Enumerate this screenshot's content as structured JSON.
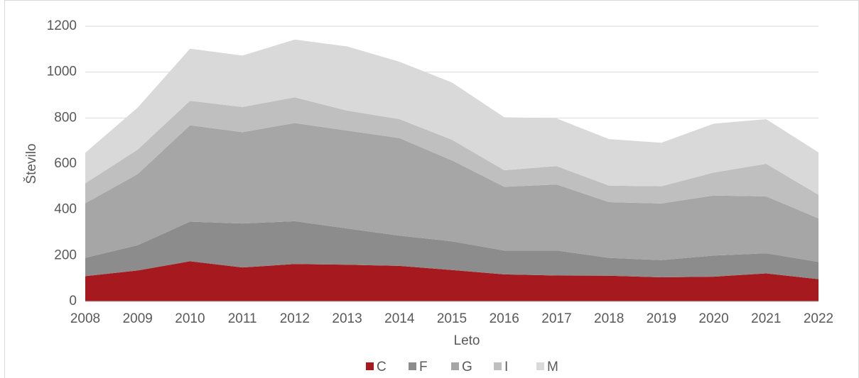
{
  "chart_data": {
    "type": "stacked_area",
    "x_label": "Leto",
    "y_label": "Število",
    "categories": [
      "2008",
      "2009",
      "2010",
      "2011",
      "2012",
      "2013",
      "2014",
      "2015",
      "2016",
      "2017",
      "2018",
      "2019",
      "2020",
      "2021",
      "2022"
    ],
    "series": [
      {
        "name": "C",
        "color": "#a6191e",
        "values": [
          110,
          135,
          175,
          148,
          163,
          160,
          155,
          137,
          118,
          113,
          112,
          105,
          108,
          122,
          97
        ]
      },
      {
        "name": "F",
        "color": "#8c8c8c",
        "values": [
          80,
          110,
          173,
          192,
          187,
          158,
          132,
          125,
          104,
          109,
          78,
          75,
          92,
          88,
          75
        ]
      },
      {
        "name": "G",
        "color": "#a6a6a6",
        "values": [
          238,
          310,
          420,
          398,
          428,
          427,
          425,
          353,
          278,
          288,
          243,
          247,
          262,
          248,
          190
        ]
      },
      {
        "name": "I",
        "color": "#bfbfbf",
        "values": [
          87,
          107,
          107,
          110,
          112,
          87,
          83,
          90,
          72,
          80,
          72,
          75,
          100,
          142,
          103
        ]
      },
      {
        "name": "M",
        "color": "#d9d9d9",
        "values": [
          133,
          183,
          227,
          224,
          252,
          280,
          250,
          250,
          231,
          208,
          203,
          190,
          213,
          195,
          185
        ]
      }
    ],
    "ylim": [
      0,
      1200
    ],
    "yticks": [
      0,
      200,
      400,
      600,
      800,
      1000,
      1200
    ],
    "grid": true,
    "legend": "bottom"
  }
}
